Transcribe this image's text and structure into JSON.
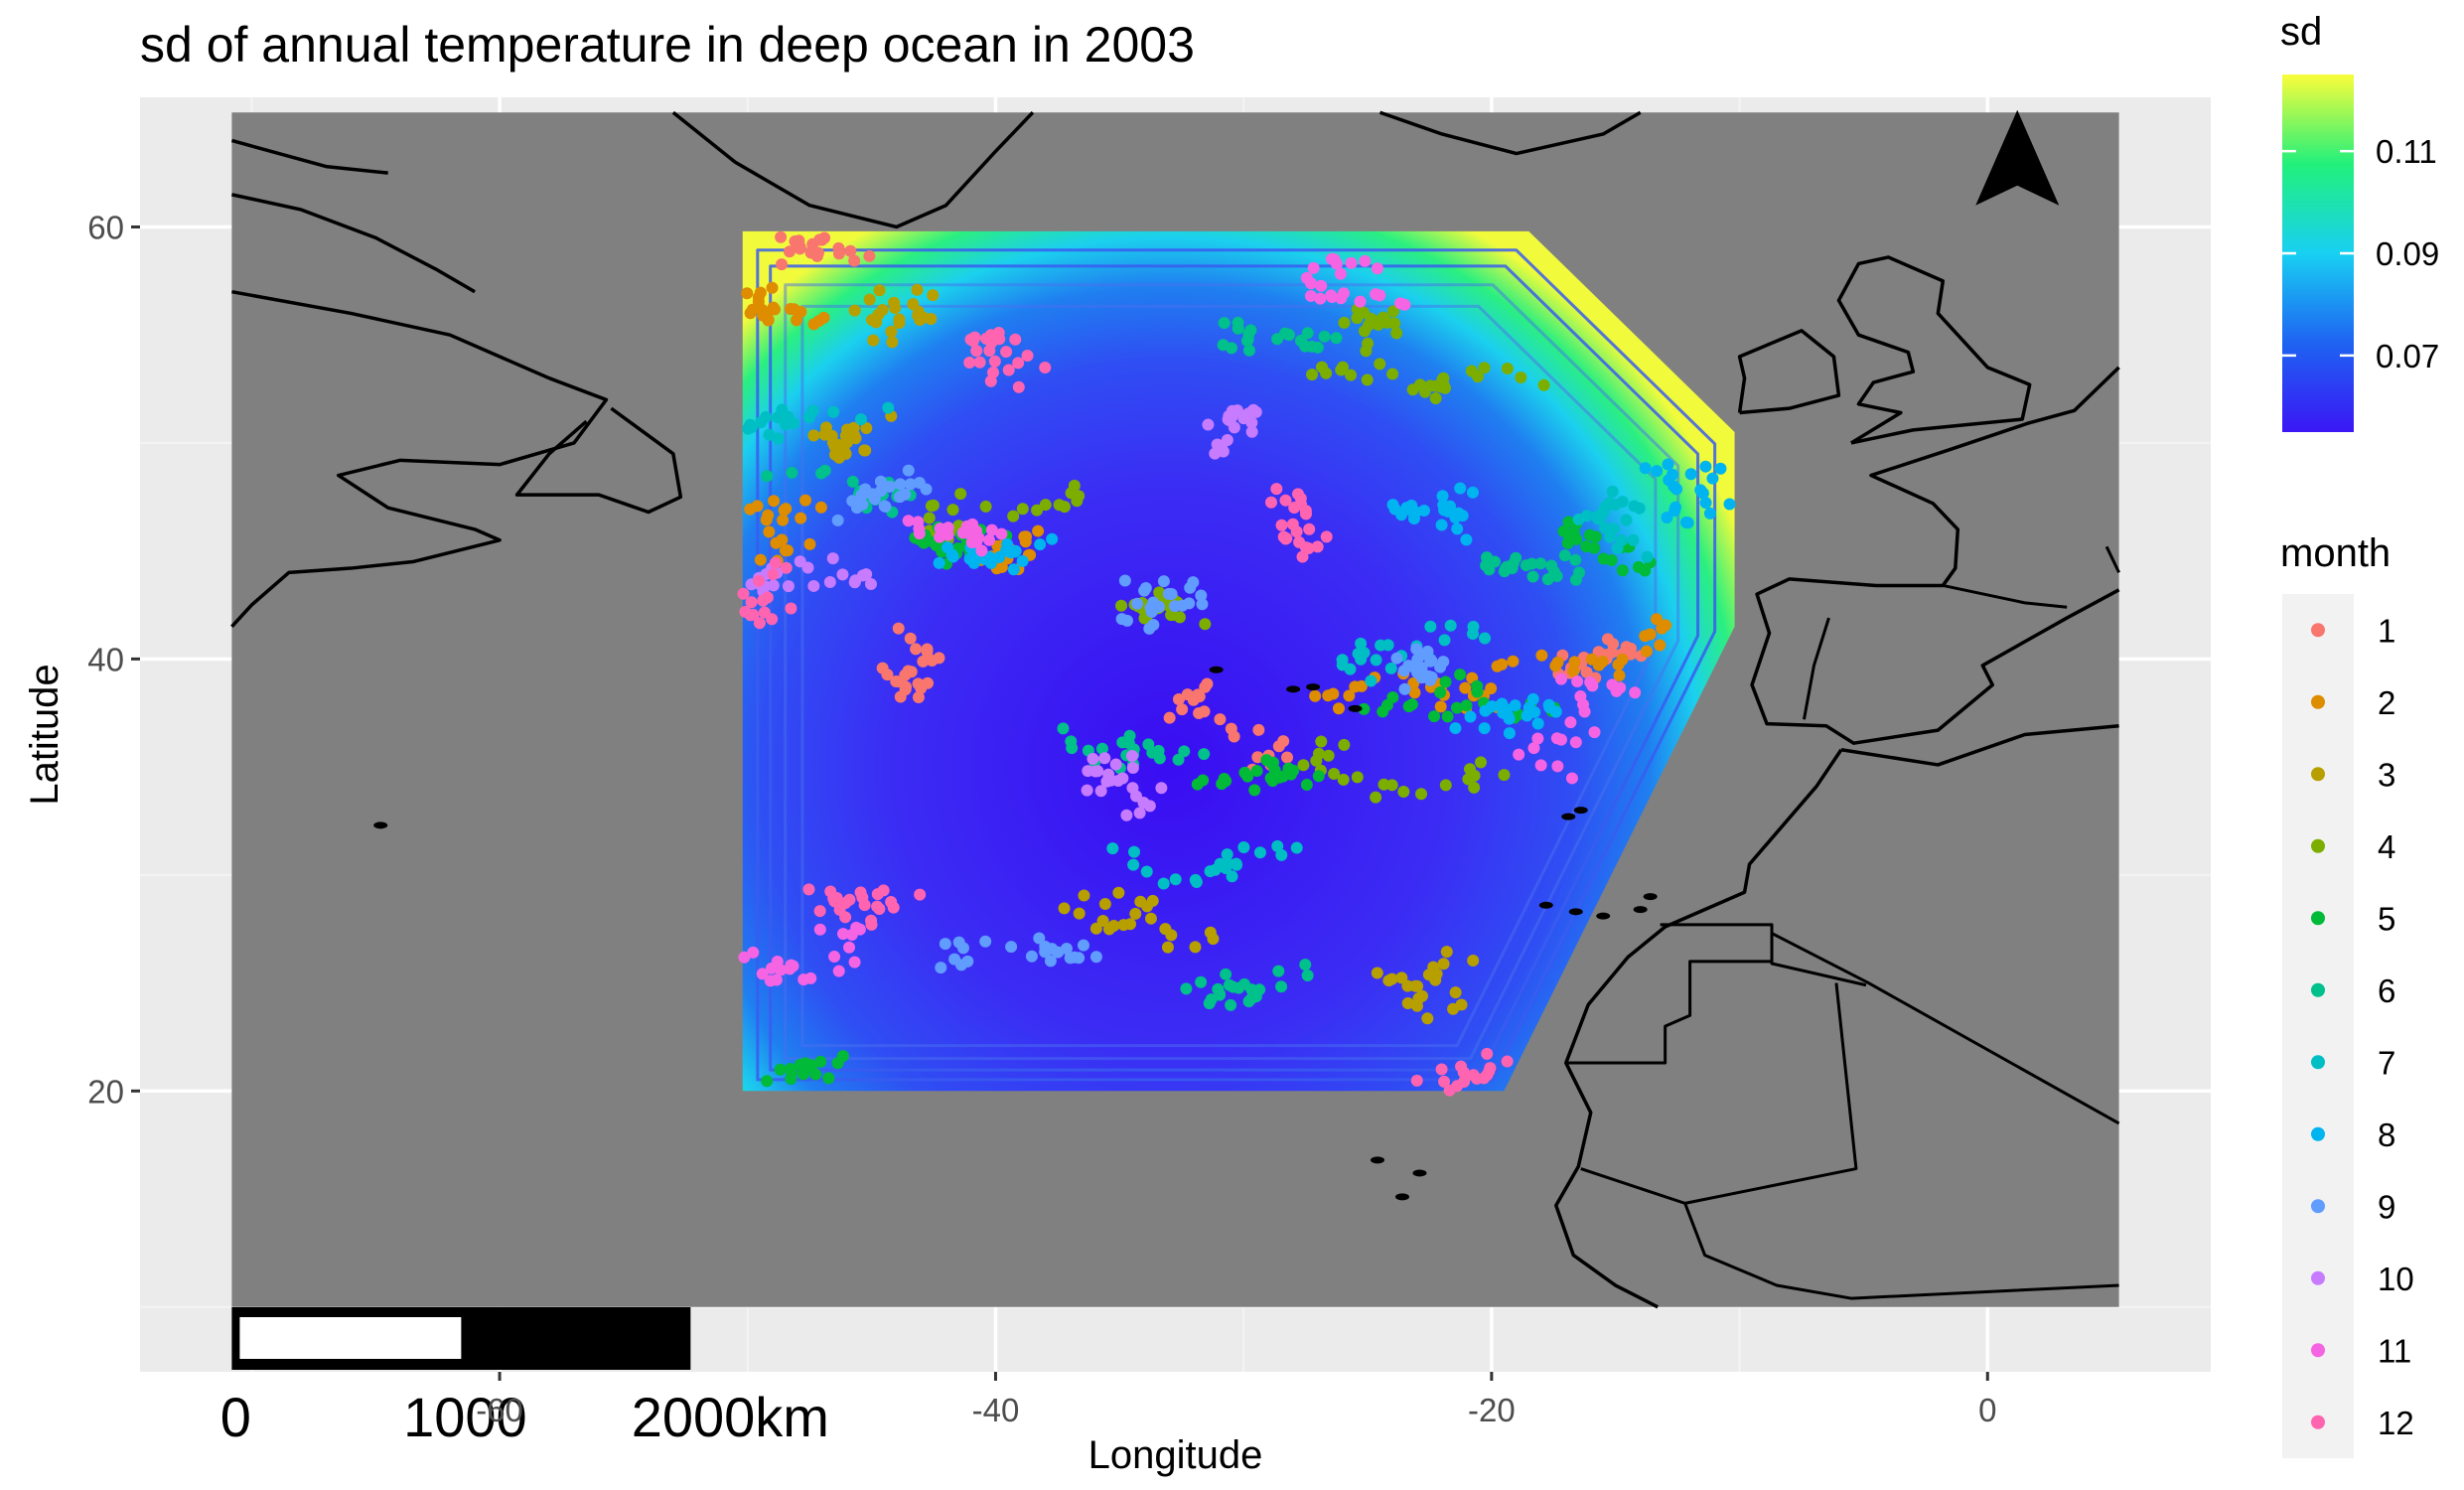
{
  "chart_data": {
    "type": "scatter",
    "title": "sd of annual temperature in deep ocean in 2003",
    "xlabel": "Longitude",
    "ylabel": "Latitude",
    "xlim": [
      -74.5,
      9
    ],
    "ylim": [
      7,
      66
    ],
    "x_ticks": [
      -60,
      -40,
      -20,
      0
    ],
    "y_ticks": [
      20,
      40,
      60
    ],
    "x_tick_labels": [
      "-60",
      "-40",
      "-20",
      "0"
    ],
    "y_tick_labels": [
      "20",
      "40",
      "60"
    ],
    "grid": true,
    "background": "#ebebeb",
    "map_extent": {
      "lon": [
        -70.8,
        5.3
      ],
      "lat": [
        10,
        65.3
      ]
    },
    "map_fill": "#808080",
    "interpolated_region": {
      "variable": "sd",
      "polygon_lonlat": [
        [
          -50.2,
          59.8
        ],
        [
          -18.5,
          59.8
        ],
        [
          -10.2,
          50.5
        ],
        [
          -10.2,
          41.5
        ],
        [
          -19.5,
          20
        ],
        [
          -50.2,
          20
        ]
      ],
      "contour_levels": [
        0.072,
        0.08,
        0.088,
        0.096,
        0.104
      ],
      "edge_sd": 0.12,
      "center_sd": 0.058,
      "center_lonlat": [
        -33,
        35
      ]
    },
    "sd_legend": {
      "title": "sd",
      "range": [
        0.055,
        0.125
      ],
      "ticks": [
        0.07,
        0.09,
        0.11
      ],
      "tick_labels": [
        "0.07",
        "0.09",
        "0.11"
      ],
      "colors": [
        "#3b17f5",
        "#1e63f2",
        "#18d0f2",
        "#22f07b",
        "#fafd3a"
      ]
    },
    "month_legend": {
      "title": "month",
      "labels": [
        "1",
        "2",
        "3",
        "4",
        "5",
        "6",
        "7",
        "8",
        "9",
        "10",
        "11",
        "12"
      ],
      "colors": [
        "#f8766d",
        "#de8c00",
        "#b79f00",
        "#7cae00",
        "#00ba38",
        "#00c08b",
        "#00bfc4",
        "#00b4f0",
        "#619cff",
        "#c77cff",
        "#f564e3",
        "#ff64b0"
      ]
    },
    "series": [
      {
        "month": 1,
        "points": [
          [
            -49,
            58.5
          ],
          [
            -44,
            41
          ],
          [
            -30,
            35
          ],
          [
            -15,
            41
          ]
        ]
      },
      {
        "month": 2,
        "points": [
          [
            -48.5,
            56
          ],
          [
            -50,
            44
          ],
          [
            -38,
            45
          ],
          [
            -25,
            39
          ],
          [
            -12,
            41
          ]
        ]
      },
      {
        "month": 3,
        "points": [
          [
            -47,
            50
          ],
          [
            -35,
            29
          ],
          [
            -22,
            27
          ],
          [
            -45,
            55
          ]
        ]
      },
      {
        "month": 4,
        "points": [
          [
            -42,
            46
          ],
          [
            -35,
            42
          ],
          [
            -28,
            35
          ],
          [
            -18,
            53
          ],
          [
            -25,
            56
          ]
        ]
      },
      {
        "month": 5,
        "points": [
          [
            -40,
            46
          ],
          [
            -30,
            35
          ],
          [
            -22,
            38
          ],
          [
            -15,
            44
          ],
          [
            -50,
            20.5
          ]
        ]
      },
      {
        "month": 6,
        "points": [
          [
            -44,
            48
          ],
          [
            -31,
            55
          ],
          [
            -20,
            45
          ],
          [
            -28,
            25
          ],
          [
            -38,
            37
          ]
        ]
      },
      {
        "month": 7,
        "points": [
          [
            -45,
            52
          ],
          [
            -25,
            40
          ],
          [
            -15,
            48
          ],
          [
            -36,
            31
          ]
        ]
      },
      {
        "month": 8,
        "points": [
          [
            -42,
            45
          ],
          [
            -22,
            47
          ],
          [
            -18,
            38
          ],
          [
            -10.5,
            48.5
          ]
        ]
      },
      {
        "month": 9,
        "points": [
          [
            -47,
            47
          ],
          [
            -32,
            44
          ],
          [
            -40,
            26
          ],
          [
            -23,
            40
          ]
        ]
      },
      {
        "month": 10,
        "points": [
          [
            -45,
            43
          ],
          [
            -30,
            50
          ],
          [
            -35,
            33
          ]
        ]
      },
      {
        "month": 11,
        "points": [
          [
            -41,
            46
          ],
          [
            -23,
            56
          ],
          [
            -15,
            38
          ],
          [
            -48,
            25
          ]
        ]
      },
      {
        "month": 12,
        "points": [
          [
            -48,
            42
          ],
          [
            -45,
            28
          ],
          [
            -27,
            46
          ],
          [
            -40,
            53
          ],
          [
            -20,
            20.5
          ]
        ]
      }
    ],
    "scale_bar": {
      "labels": [
        "0",
        "1000",
        "2000km"
      ]
    }
  }
}
